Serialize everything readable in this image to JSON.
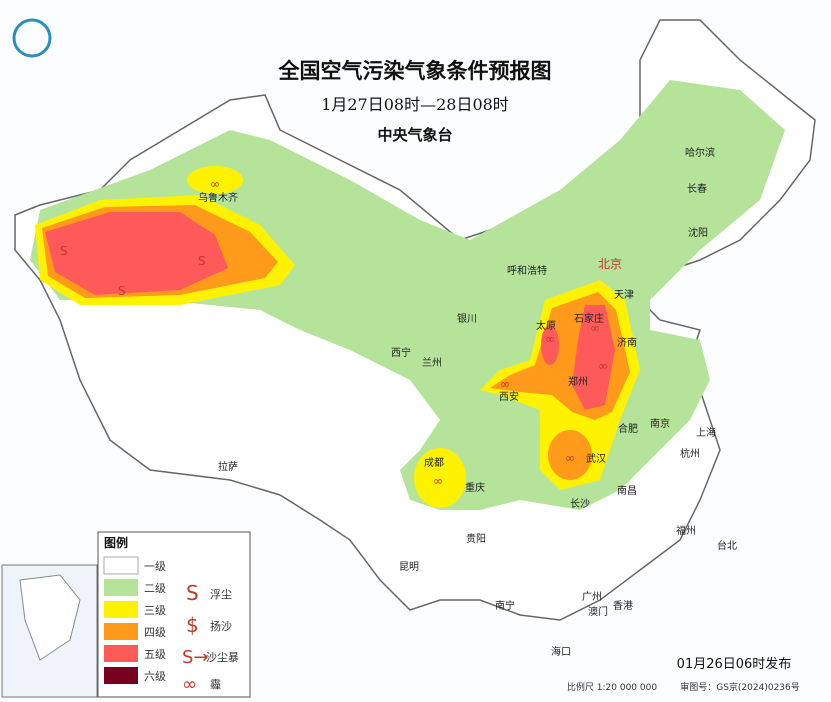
{
  "header": {
    "title": "全国空气污染气象条件预报图",
    "subtitle": "1月27日08时—28日08时",
    "issuer": "中央气象台"
  },
  "legend": {
    "title": "图例",
    "levels": [
      "一级",
      "二级",
      "三级",
      "四级",
      "五级",
      "六级"
    ],
    "symbols": [
      "浮尘",
      "扬沙",
      "沙尘暴",
      "霾"
    ]
  },
  "cities": [
    "乌鲁木齐",
    "呼和浩特",
    "北京",
    "天津",
    "哈尔滨",
    "长春",
    "沈阳",
    "银川",
    "太原",
    "石家庄",
    "济南",
    "西宁",
    "兰州",
    "郑州",
    "西安",
    "合肥",
    "南京",
    "上海",
    "成都",
    "武汉",
    "杭州",
    "重庆",
    "长沙",
    "南昌",
    "拉萨",
    "贵阳",
    "福州",
    "台北",
    "昆明",
    "南宁",
    "广州",
    "澳门",
    "香港",
    "海口"
  ],
  "footer": {
    "release": "01月26日06时发布",
    "scale": "比例尺 1:20 000 000",
    "map_number": "审图号：GS京(2024)0236号"
  }
}
